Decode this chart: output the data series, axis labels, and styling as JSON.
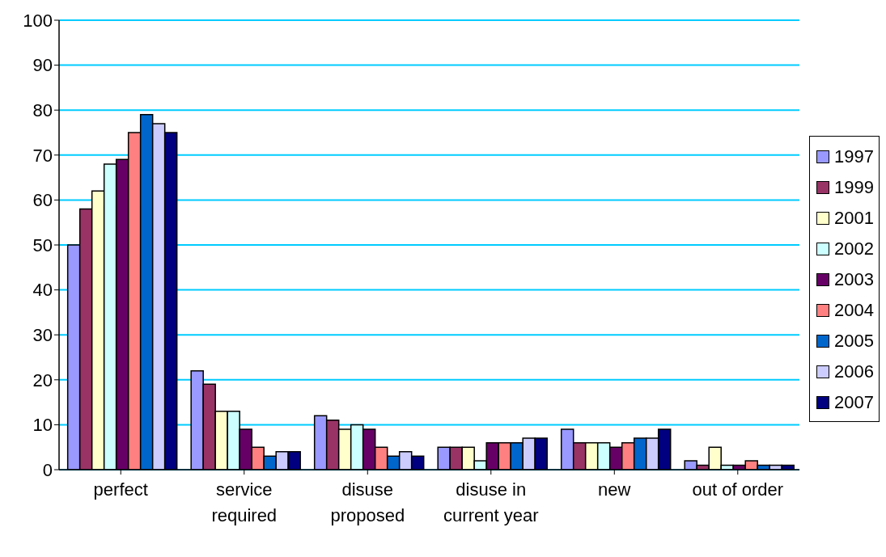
{
  "chart_data": {
    "type": "bar",
    "categories": [
      "perfect",
      "service required",
      "disuse proposed",
      "disuse in current year",
      "new",
      "out of order"
    ],
    "series": [
      {
        "name": "1997",
        "color": "#9999ff",
        "values": [
          50,
          22,
          12,
          5,
          9,
          2
        ]
      },
      {
        "name": "1999",
        "color": "#993366",
        "values": [
          58,
          19,
          11,
          5,
          6,
          1
        ]
      },
      {
        "name": "2001",
        "color": "#ffffcc",
        "values": [
          62,
          13,
          9,
          5,
          6,
          5
        ]
      },
      {
        "name": "2002",
        "color": "#ccffff",
        "values": [
          68,
          13,
          10,
          2,
          6,
          1
        ]
      },
      {
        "name": "2003",
        "color": "#660066",
        "values": [
          69,
          9,
          9,
          6,
          5,
          1
        ]
      },
      {
        "name": "2004",
        "color": "#ff8080",
        "values": [
          75,
          5,
          5,
          6,
          6,
          2
        ]
      },
      {
        "name": "2005",
        "color": "#0066cc",
        "values": [
          79,
          3,
          3,
          6,
          7,
          1
        ]
      },
      {
        "name": "2006",
        "color": "#ccccff",
        "values": [
          77,
          4,
          4,
          7,
          7,
          1
        ]
      },
      {
        "name": "2007",
        "color": "#000080",
        "values": [
          75,
          4,
          3,
          7,
          9,
          1
        ]
      }
    ],
    "ylim": [
      0,
      100
    ],
    "yticks": [
      0,
      10,
      20,
      30,
      40,
      50,
      60,
      70,
      80,
      90,
      100
    ],
    "grid": "y",
    "legend": "right"
  }
}
